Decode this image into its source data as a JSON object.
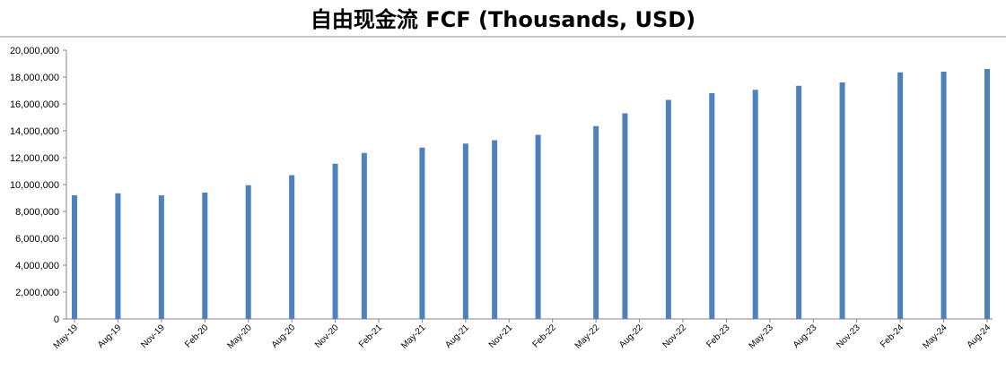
{
  "chart_data": {
    "type": "bar",
    "title": "自由现金流 FCF (Thousands, USD)",
    "xlabel": "",
    "ylabel": "",
    "ylim": [
      0,
      20000000
    ],
    "yticks": [
      "0",
      "2,000,000",
      "4,000,000",
      "6,000,000",
      "8,000,000",
      "10,000,000",
      "12,000,000",
      "14,000,000",
      "16,000,000",
      "18,000,000",
      "20,000,000"
    ],
    "xticks": [
      "May-19",
      "Aug-19",
      "Nov-19",
      "Feb-20",
      "May-20",
      "Aug-20",
      "Nov-20",
      "Feb-21",
      "May-21",
      "Aug-21",
      "Nov-21",
      "Feb-22",
      "May-22",
      "Aug-22",
      "Nov-22",
      "Feb-23",
      "May-23",
      "Aug-23",
      "Nov-23",
      "Feb-24",
      "May-24",
      "Aug-24"
    ],
    "x_start": "2019-05-01",
    "x_end": "2024-08-01",
    "bar_color": "#4F81BD",
    "grid": false,
    "points": [
      {
        "date": "2019-05-01",
        "value": 9200000
      },
      {
        "date": "2019-08-01",
        "value": 9350000
      },
      {
        "date": "2019-11-01",
        "value": 9200000
      },
      {
        "date": "2020-02-01",
        "value": 9400000
      },
      {
        "date": "2020-05-01",
        "value": 9950000
      },
      {
        "date": "2020-08-01",
        "value": 10700000
      },
      {
        "date": "2020-11-01",
        "value": 11550000
      },
      {
        "date": "2021-01-01",
        "value": 12350000
      },
      {
        "date": "2021-05-01",
        "value": 12750000
      },
      {
        "date": "2021-08-01",
        "value": 13050000
      },
      {
        "date": "2021-10-01",
        "value": 13300000
      },
      {
        "date": "2022-01-01",
        "value": 13700000
      },
      {
        "date": "2022-05-01",
        "value": 14350000
      },
      {
        "date": "2022-07-01",
        "value": 15300000
      },
      {
        "date": "2022-10-01",
        "value": 16300000
      },
      {
        "date": "2023-01-01",
        "value": 16800000
      },
      {
        "date": "2023-04-01",
        "value": 17050000
      },
      {
        "date": "2023-07-01",
        "value": 17350000
      },
      {
        "date": "2023-10-01",
        "value": 17600000
      },
      {
        "date": "2024-02-01",
        "value": 18350000
      },
      {
        "date": "2024-05-01",
        "value": 18400000
      },
      {
        "date": "2024-08-01",
        "value": 18600000
      }
    ]
  }
}
